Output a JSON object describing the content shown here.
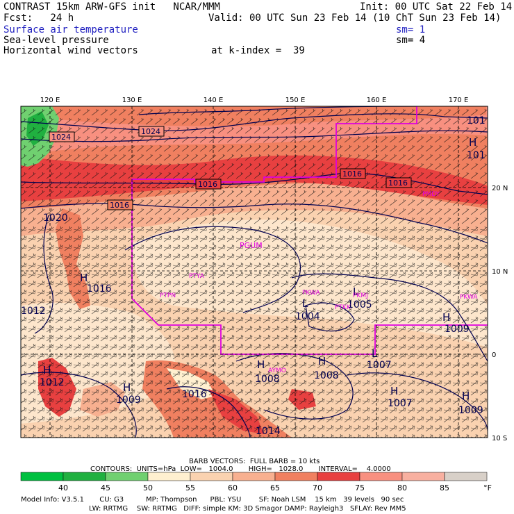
{
  "header": {
    "title": "CONTRAST 15km ARW-GFS init   NCAR/MMM",
    "init": "Init: 00 UTC Sat 22 Feb 14",
    "fcst": "Fcst:   24 h",
    "valid": "Valid: 00 UTC Sun 23 Feb 14 (10 ChT Sun 23 Feb 14)",
    "field1": "Surface air temperature",
    "field2": "Sea-level pressure",
    "field3": "Horizontal wind vectors",
    "sm1": "sm= 1",
    "sm2": "sm= 4",
    "kindex": "at k-index =  39"
  },
  "map": {
    "lon_labels": [
      "120 E",
      "130 E",
      "140 E",
      "150 E",
      "160 E",
      "170 E"
    ],
    "lat_labels": [
      "20 N",
      "10 N",
      "0",
      "10 S"
    ],
    "isobar_labels": [
      "1024",
      "1024",
      "1016",
      "1016",
      "1016",
      "1016",
      "1020",
      "1016",
      "1012",
      "1009",
      "1009",
      "1008",
      "1008",
      "1007",
      "1007",
      "1005",
      "1004",
      "1009",
      "1014",
      "1016",
      "1012",
      "101",
      "101"
    ],
    "highs_lows": [
      "H",
      "H",
      "H",
      "H",
      "H",
      "H",
      "L",
      "L",
      "L",
      "H",
      "H",
      "H"
    ],
    "stations": [
      "PGUM",
      "PTYA",
      "PTPN",
      "PKWA",
      "PKMJ",
      "PMDY",
      "PKWA",
      "PTKK",
      "AYMO"
    ],
    "colors": {
      "t40": "#00c040",
      "t45": "#20b040",
      "t50": "#70d070",
      "t55": "#fff0d0",
      "t60": "#fad2b0",
      "t65": "#f8b090",
      "t70": "#f08060",
      "t75": "#e84040",
      "t80": "#f89080",
      "t85": "#d8d8d8",
      "isobar": "#000050",
      "boundary": "#e000e0"
    }
  },
  "footer": {
    "barb_vectors": "BARB VECTORS:  FULL BARB = 10 kts",
    "contours": "CONTOURS:  UNITS=hPa  LOW=   1004.0       HIGH=   1028.0       INTERVAL=    4.0000",
    "colorbar_labels": [
      "40",
      "45",
      "50",
      "55",
      "60",
      "65",
      "70",
      "75",
      "80",
      "85"
    ],
    "colorbar_unit": "°F",
    "model_line1": "Model Info: V3.5.1       CU: G3          MP: Thompson      PBL: YSU        SF: Noah LSM    15 km   39 levels   90 sec",
    "model_line2": "LW: RRTMG    SW: RRTMG   DIFF: simple KM: 3D Smagor DAMP: Rayleigh3   SFLAY: Rev MM5"
  }
}
